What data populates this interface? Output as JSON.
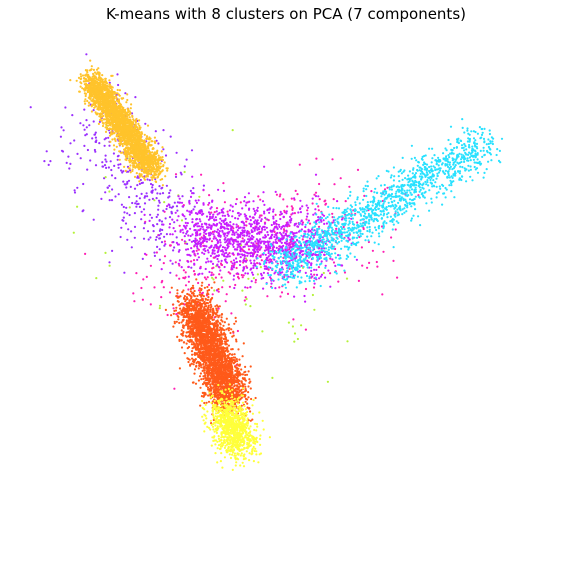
{
  "chart_data": {
    "type": "scatter",
    "title": "K-means with 8 clusters on PCA (7 components)",
    "xlabel": "",
    "ylabel": "",
    "axes_visible": false,
    "grid": false,
    "xlim": [
      -3.2,
      3.2
    ],
    "ylim": [
      -3.2,
      3.2
    ],
    "point_clusters": [
      {
        "name": "",
        "color": "#ffc32b",
        "count": 2600,
        "x": [
          -2.35,
          -1.6
        ],
        "y": [
          2.6,
          1.5
        ],
        "spread": 0.08
      },
      {
        "name": "",
        "color": "#ff5a1a",
        "count": 2800,
        "x": [
          -1.1,
          -0.65
        ],
        "y": [
          -0.1,
          -1.3
        ],
        "spread": 0.12
      },
      {
        "name": "",
        "color": "#ffff3a",
        "count": 900,
        "x": [
          -0.75,
          -0.55
        ],
        "y": [
          -1.35,
          -1.85
        ],
        "spread": 0.12
      },
      {
        "name": "",
        "color": "#29e1ff",
        "count": 1400,
        "x": [
          -0.1,
          2.4
        ],
        "y": [
          0.3,
          1.85
        ],
        "spread": 0.14
      },
      {
        "name": "",
        "color": "#c81dff",
        "count": 1200,
        "x": [
          -1.2,
          0.4
        ],
        "y": [
          0.75,
          0.6
        ],
        "spread": 0.22
      },
      {
        "name": "",
        "color": "#ff1fb4",
        "count": 400,
        "x": [
          -1.5,
          0.9
        ],
        "y": [
          0.2,
          0.9
        ],
        "spread": 0.35
      },
      {
        "name": "",
        "color": "#9b30ff",
        "count": 350,
        "x": [
          -2.3,
          -1.4
        ],
        "y": [
          2.2,
          0.6
        ],
        "spread": 0.28
      },
      {
        "name": "",
        "color": "#b5f23a",
        "count": 60,
        "x": [
          -1.9,
          0.3
        ],
        "y": [
          1.5,
          -0.6
        ],
        "spread": 0.5
      }
    ]
  }
}
